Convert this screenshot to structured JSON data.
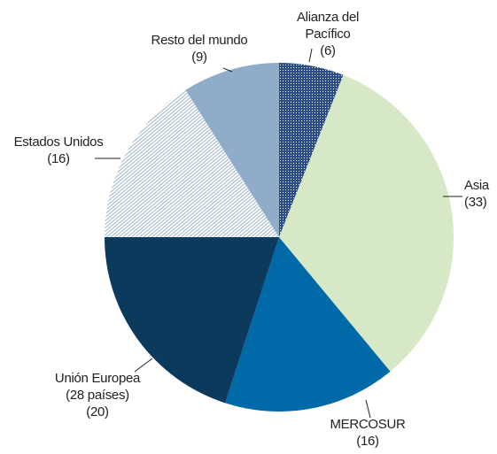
{
  "chart_data": {
    "type": "pie",
    "categories": [
      "Alianza del\nPacífico",
      "Asia",
      "MERCOSUR",
      "Unión Europea\n(28 países)",
      "Estados Unidos",
      "Resto del mundo"
    ],
    "values": [
      6,
      33,
      16,
      20,
      16,
      9
    ],
    "value_labels": [
      "(6)",
      "(33)",
      "(16)",
      "(20)",
      "(16)",
      "(9)"
    ],
    "colors": [
      "#2c4d8c",
      "#d6e8c6",
      "#0069a7",
      "#0b3a5c",
      "#9fb3c8",
      "#8fadc8"
    ],
    "patterns": [
      "dots",
      null,
      null,
      null,
      "hatch",
      null
    ]
  }
}
